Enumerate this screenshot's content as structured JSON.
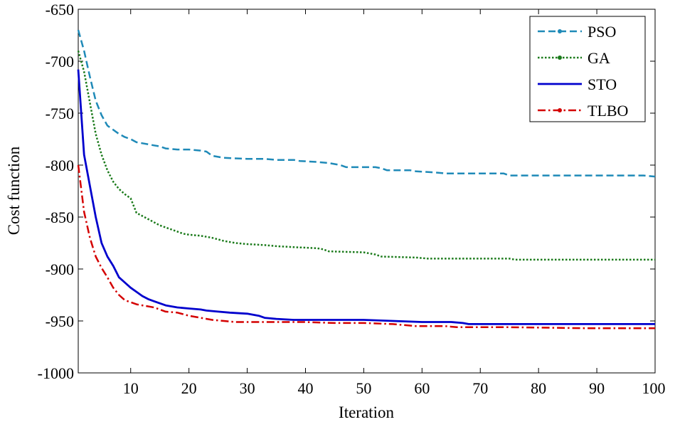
{
  "chart_data": {
    "type": "line",
    "title": "",
    "xlabel": "Iteration",
    "ylabel": "Cost function",
    "xlim": [
      1,
      100
    ],
    "ylim": [
      -1000,
      -650
    ],
    "xticks": [
      10,
      20,
      30,
      40,
      50,
      60,
      70,
      80,
      90,
      100
    ],
    "yticks": [
      -650,
      -700,
      -750,
      -800,
      -850,
      -900,
      -950,
      -1000
    ],
    "grid": false,
    "legend_position": "top-right",
    "series": [
      {
        "name": "PSO",
        "color": "#1f8ab8",
        "style": "dashed",
        "points": [
          [
            1,
            -670
          ],
          [
            2,
            -690
          ],
          [
            3,
            -715
          ],
          [
            4,
            -738
          ],
          [
            5,
            -752
          ],
          [
            6,
            -762
          ],
          [
            7,
            -766
          ],
          [
            8,
            -770
          ],
          [
            9,
            -773
          ],
          [
            10,
            -775
          ],
          [
            11,
            -778
          ],
          [
            12,
            -779
          ],
          [
            13,
            -780
          ],
          [
            14,
            -781
          ],
          [
            15,
            -782
          ],
          [
            16,
            -784
          ],
          [
            18,
            -785
          ],
          [
            20,
            -785
          ],
          [
            22,
            -786
          ],
          [
            23,
            -787
          ],
          [
            24,
            -791
          ],
          [
            26,
            -793
          ],
          [
            30,
            -794
          ],
          [
            33,
            -794
          ],
          [
            35,
            -795
          ],
          [
            38,
            -795
          ],
          [
            39,
            -796
          ],
          [
            42,
            -797
          ],
          [
            44,
            -798
          ],
          [
            46,
            -800
          ],
          [
            47,
            -802
          ],
          [
            52,
            -802
          ],
          [
            53,
            -803
          ],
          [
            54,
            -805
          ],
          [
            58,
            -805
          ],
          [
            59,
            -806
          ],
          [
            62,
            -807
          ],
          [
            64,
            -808
          ],
          [
            74,
            -808
          ],
          [
            75,
            -810
          ],
          [
            98,
            -810
          ],
          [
            100,
            -811
          ]
        ]
      },
      {
        "name": "GA",
        "color": "#1a7a1a",
        "style": "dotted",
        "points": [
          [
            1,
            -690
          ],
          [
            2,
            -710
          ],
          [
            3,
            -740
          ],
          [
            4,
            -770
          ],
          [
            5,
            -790
          ],
          [
            6,
            -805
          ],
          [
            7,
            -816
          ],
          [
            8,
            -823
          ],
          [
            9,
            -828
          ],
          [
            10,
            -832
          ],
          [
            11,
            -846
          ],
          [
            12,
            -849
          ],
          [
            13,
            -852
          ],
          [
            14,
            -855
          ],
          [
            15,
            -858
          ],
          [
            16,
            -860
          ],
          [
            17,
            -862
          ],
          [
            18,
            -864
          ],
          [
            19,
            -866
          ],
          [
            20,
            -867
          ],
          [
            22,
            -868
          ],
          [
            23,
            -869
          ],
          [
            24,
            -870
          ],
          [
            26,
            -873
          ],
          [
            28,
            -875
          ],
          [
            30,
            -876
          ],
          [
            33,
            -877
          ],
          [
            35,
            -878
          ],
          [
            38,
            -879
          ],
          [
            42,
            -880
          ],
          [
            43,
            -881
          ],
          [
            44,
            -883
          ],
          [
            50,
            -884
          ],
          [
            51,
            -885
          ],
          [
            52,
            -886
          ],
          [
            53,
            -888
          ],
          [
            59,
            -889
          ],
          [
            61,
            -890
          ],
          [
            75,
            -890
          ],
          [
            76,
            -891
          ],
          [
            100,
            -891
          ]
        ]
      },
      {
        "name": "STO",
        "color": "#0000cd",
        "style": "solid",
        "points": [
          [
            1,
            -708
          ],
          [
            2,
            -790
          ],
          [
            3,
            -820
          ],
          [
            4,
            -850
          ],
          [
            5,
            -875
          ],
          [
            6,
            -888
          ],
          [
            7,
            -897
          ],
          [
            8,
            -908
          ],
          [
            9,
            -913
          ],
          [
            10,
            -918
          ],
          [
            11,
            -922
          ],
          [
            12,
            -926
          ],
          [
            13,
            -929
          ],
          [
            14,
            -931
          ],
          [
            15,
            -933
          ],
          [
            16,
            -935
          ],
          [
            18,
            -937
          ],
          [
            20,
            -938
          ],
          [
            22,
            -939
          ],
          [
            23,
            -940
          ],
          [
            25,
            -941
          ],
          [
            27,
            -942
          ],
          [
            30,
            -943
          ],
          [
            32,
            -945
          ],
          [
            33,
            -947
          ],
          [
            35,
            -948
          ],
          [
            38,
            -949
          ],
          [
            40,
            -949
          ],
          [
            45,
            -949
          ],
          [
            50,
            -949
          ],
          [
            55,
            -950
          ],
          [
            60,
            -951
          ],
          [
            65,
            -951
          ],
          [
            67,
            -952
          ],
          [
            68,
            -953
          ],
          [
            80,
            -953
          ],
          [
            90,
            -953
          ],
          [
            100,
            -953
          ]
        ]
      },
      {
        "name": "TLBO",
        "color": "#d40000",
        "style": "dashdot",
        "points": [
          [
            1,
            -800
          ],
          [
            2,
            -845
          ],
          [
            3,
            -870
          ],
          [
            4,
            -888
          ],
          [
            5,
            -899
          ],
          [
            6,
            -908
          ],
          [
            7,
            -918
          ],
          [
            8,
            -925
          ],
          [
            9,
            -930
          ],
          [
            10,
            -932
          ],
          [
            11,
            -934
          ],
          [
            12,
            -935
          ],
          [
            14,
            -937
          ],
          [
            15,
            -939
          ],
          [
            16,
            -941
          ],
          [
            18,
            -942
          ],
          [
            20,
            -945
          ],
          [
            22,
            -947
          ],
          [
            24,
            -949
          ],
          [
            26,
            -950
          ],
          [
            28,
            -951
          ],
          [
            33,
            -951
          ],
          [
            40,
            -951
          ],
          [
            45,
            -952
          ],
          [
            50,
            -952
          ],
          [
            55,
            -953
          ],
          [
            59,
            -955
          ],
          [
            64,
            -955
          ],
          [
            66,
            -956
          ],
          [
            75,
            -956
          ],
          [
            88,
            -957
          ],
          [
            100,
            -957
          ]
        ]
      }
    ]
  }
}
